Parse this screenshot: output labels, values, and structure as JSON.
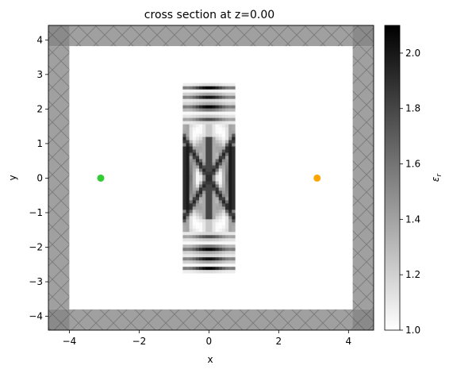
{
  "chart_data": {
    "type": "heatmap",
    "title": "cross section at z=0.00",
    "xlabel": "x",
    "ylabel": "y",
    "xlim": [
      -4.6,
      4.72
    ],
    "ylim": [
      -4.4,
      4.42
    ],
    "xticks": [
      -4,
      -2,
      0,
      2,
      4
    ],
    "yticks": [
      -4,
      -3,
      -2,
      -1,
      0,
      1,
      2,
      3,
      4
    ],
    "xtick_labels": [
      "−4",
      "−2",
      "0",
      "2",
      "4"
    ],
    "ytick_labels": [
      "−4",
      "−3",
      "−2",
      "−1",
      "0",
      "1",
      "2",
      "3",
      "4"
    ],
    "grid": false,
    "pml_thickness": 0.6,
    "simulation_interior": {
      "x": [
        -4.0,
        4.12
      ],
      "y": [
        -3.8,
        3.82
      ]
    },
    "design_region": {
      "x": [
        -0.75,
        0.75
      ],
      "y": [
        -2.75,
        2.75
      ],
      "resolution": [
        16,
        60
      ]
    },
    "markers": [
      {
        "name": "source",
        "x": -3.1,
        "y": 0.0,
        "color": "#32cd32"
      },
      {
        "name": "monitor",
        "x": 3.1,
        "y": 0.0,
        "color": "#ffa500"
      }
    ],
    "colorbar": {
      "label": "ε_r",
      "min": 1.0,
      "max": 2.1,
      "ticks": [
        1.0,
        1.2,
        1.4,
        1.6,
        1.8,
        2.0
      ],
      "tick_labels": [
        "1.0",
        "1.2",
        "1.4",
        "1.6",
        "1.8",
        "2.0"
      ],
      "colormap": "gray_r"
    },
    "colors": {
      "pml": "#a0a0a0",
      "pml_hatch": "#7a7a7a",
      "background": "#ffffff"
    }
  }
}
